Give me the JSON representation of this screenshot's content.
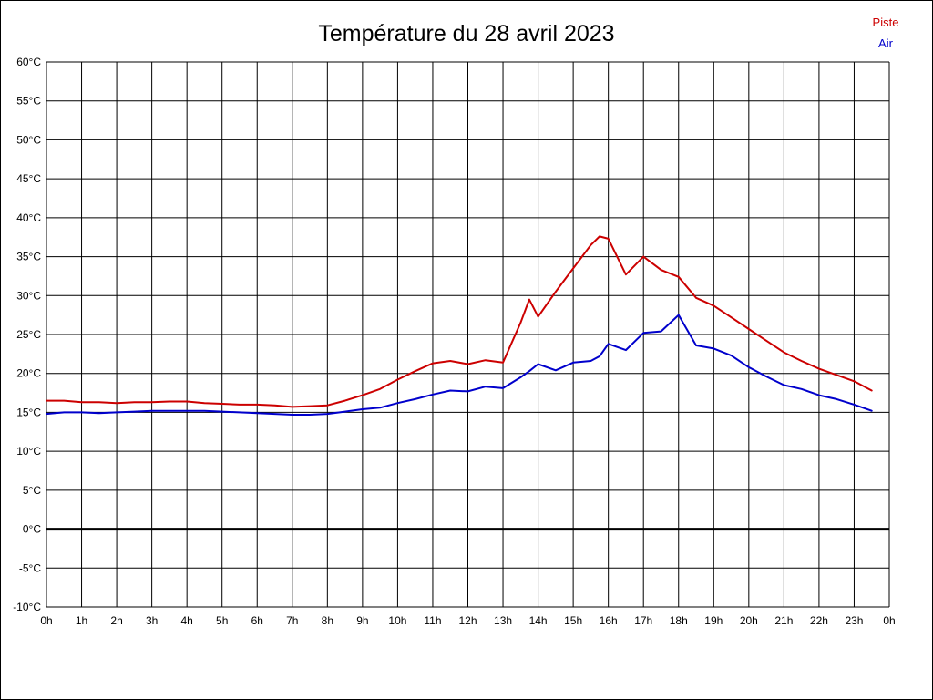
{
  "chart_data": {
    "type": "line",
    "title": "Température du 28 avril 2023",
    "xlabel": "",
    "ylabel": "",
    "xlim": [
      0,
      24
    ],
    "ylim": [
      -10,
      60
    ],
    "grid": true,
    "grid_color": "#000000",
    "zero_line": {
      "value": 0,
      "color": "#000000",
      "width": 3
    },
    "legend_position": "top-right",
    "x_ticks": [
      0,
      1,
      2,
      3,
      4,
      5,
      6,
      7,
      8,
      9,
      10,
      11,
      12,
      13,
      14,
      15,
      16,
      17,
      18,
      19,
      20,
      21,
      22,
      23,
      24
    ],
    "x_tick_labels": [
      "0h",
      "1h",
      "2h",
      "3h",
      "4h",
      "5h",
      "6h",
      "7h",
      "8h",
      "9h",
      "10h",
      "11h",
      "12h",
      "13h",
      "14h",
      "15h",
      "16h",
      "17h",
      "18h",
      "19h",
      "20h",
      "21h",
      "22h",
      "23h",
      "0h"
    ],
    "y_ticks": [
      60,
      55,
      50,
      45,
      40,
      35,
      30,
      25,
      20,
      15,
      10,
      5,
      0,
      -5,
      -10
    ],
    "y_tick_labels": [
      "60°C",
      "55°C",
      "50°C",
      "45°C",
      "40°C",
      "35°C",
      "30°C",
      "25°C",
      "20°C",
      "15°C",
      "10°C",
      "5°C",
      "0°C",
      "-5°C",
      "-10°C"
    ],
    "x": [
      0,
      0.5,
      1,
      1.5,
      2,
      2.5,
      3,
      3.5,
      4,
      4.5,
      5,
      5.5,
      6,
      6.5,
      7,
      7.5,
      8,
      8.5,
      9,
      9.5,
      10,
      10.5,
      11,
      11.5,
      12,
      12.5,
      13,
      13.5,
      13.75,
      14,
      14.5,
      15,
      15.5,
      15.75,
      16,
      16.5,
      17,
      17.5,
      18,
      18.5,
      19,
      19.5,
      20,
      20.5,
      21,
      21.5,
      22,
      22.5,
      23,
      23.5
    ],
    "series": [
      {
        "name": "Piste",
        "color": "#cc0000",
        "values": [
          16.5,
          16.5,
          16.3,
          16.3,
          16.2,
          16.3,
          16.3,
          16.4,
          16.4,
          16.2,
          16.1,
          16.0,
          16.0,
          15.9,
          15.7,
          15.8,
          15.9,
          16.5,
          17.2,
          18.0,
          19.2,
          20.3,
          21.3,
          21.6,
          21.2,
          21.7,
          21.4,
          26.5,
          29.5,
          27.3,
          30.5,
          33.5,
          36.5,
          37.6,
          37.3,
          32.7,
          35.0,
          33.3,
          32.4,
          29.7,
          28.7,
          27.2,
          25.7,
          24.2,
          22.7,
          21.6,
          20.6,
          19.8,
          19.0,
          17.8
        ]
      },
      {
        "name": "Air",
        "color": "#0000cc",
        "values": [
          14.8,
          15.0,
          15.0,
          14.9,
          15.0,
          15.1,
          15.2,
          15.2,
          15.2,
          15.2,
          15.1,
          15.0,
          14.9,
          14.8,
          14.7,
          14.7,
          14.8,
          15.1,
          15.4,
          15.6,
          16.2,
          16.7,
          17.3,
          17.8,
          17.7,
          18.3,
          18.1,
          19.5,
          20.3,
          21.2,
          20.4,
          21.4,
          21.6,
          22.2,
          23.8,
          23.0,
          25.2,
          25.4,
          27.5,
          23.6,
          23.2,
          22.3,
          20.8,
          19.6,
          18.5,
          18.0,
          17.2,
          16.7,
          16.0,
          15.2
        ]
      }
    ]
  }
}
